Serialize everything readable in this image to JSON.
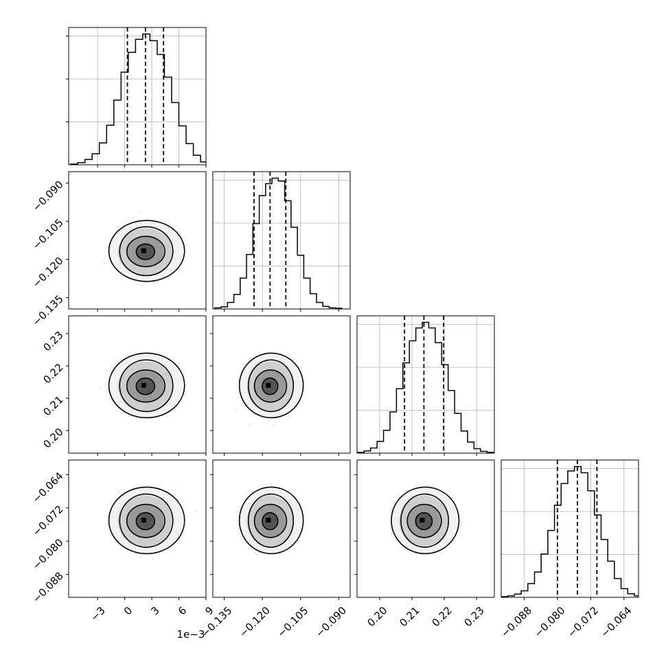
{
  "chart_data": {
    "type": "corner",
    "n_params": 4,
    "params": [
      {
        "id": "p1",
        "range": [
          -6.2,
          9.0
        ],
        "ticks": [
          -3,
          0,
          3,
          6,
          9
        ],
        "tick_labels": [
          "−3",
          "0",
          "3",
          "6",
          "9"
        ],
        "axis_offset_label": "1e−3",
        "quantiles": [
          0.3,
          2.3,
          4.3
        ],
        "hist_x": [
          -5.6,
          -4.8,
          -4.0,
          -3.2,
          -2.4,
          -1.6,
          -0.8,
          0.0,
          0.8,
          1.6,
          2.4,
          3.2,
          4.0,
          4.8,
          5.6,
          6.4,
          7.2,
          8.0,
          8.8
        ],
        "hist_y": [
          2,
          6,
          15,
          31,
          62,
          112,
          183,
          262,
          318,
          355,
          370,
          351,
          312,
          248,
          176,
          110,
          60,
          27,
          8
        ]
      },
      {
        "id": "p2",
        "range": [
          -0.1395,
          -0.0855
        ],
        "ticks": [
          -0.135,
          -0.12,
          -0.105,
          -0.09
        ],
        "tick_labels": [
          "−0.135",
          "−0.120",
          "−0.105",
          "−0.090"
        ],
        "quantiles": [
          -0.1233,
          -0.117,
          -0.1108
        ],
        "hist_x": [
          -0.1375,
          -0.135,
          -0.1325,
          -0.13,
          -0.1275,
          -0.125,
          -0.1225,
          -0.12,
          -0.1175,
          -0.115,
          -0.1125,
          -0.11,
          -0.1075,
          -0.105,
          -0.1025,
          -0.1,
          -0.0975,
          -0.095,
          -0.0925,
          -0.09
        ],
        "hist_y": [
          3,
          6,
          18,
          40,
          85,
          150,
          235,
          312,
          345,
          360,
          352,
          298,
          225,
          148,
          85,
          42,
          18,
          7,
          3,
          2
        ]
      },
      {
        "id": "p3",
        "range": [
          0.193,
          0.2355
        ],
        "ticks": [
          0.2,
          0.21,
          0.22,
          0.23
        ],
        "tick_labels": [
          "0.20",
          "0.21",
          "0.22",
          "0.23"
        ],
        "quantiles": [
          0.2077,
          0.2137,
          0.2198
        ],
        "hist_x": [
          0.1942,
          0.1962,
          0.1982,
          0.2002,
          0.2022,
          0.2042,
          0.2062,
          0.2082,
          0.2102,
          0.2122,
          0.2142,
          0.2162,
          0.2182,
          0.2202,
          0.2222,
          0.2242,
          0.2262,
          0.2282,
          0.2302,
          0.2322,
          0.2342
        ],
        "hist_y": [
          2,
          6,
          14,
          32,
          62,
          112,
          175,
          245,
          305,
          340,
          355,
          340,
          300,
          240,
          170,
          108,
          60,
          30,
          12,
          5,
          2
        ]
      },
      {
        "id": "p4",
        "range": [
          -0.0935,
          -0.0605
        ],
        "ticks": [
          -0.088,
          -0.08,
          -0.072,
          -0.064
        ],
        "tick_labels": [
          "−0.088",
          "−0.080",
          "−0.072",
          "−0.064"
        ],
        "quantiles": [
          -0.08,
          -0.0752,
          -0.0705
        ],
        "hist_x": [
          -0.0927,
          -0.0911,
          -0.0895,
          -0.0879,
          -0.0863,
          -0.0847,
          -0.0831,
          -0.0815,
          -0.0799,
          -0.0783,
          -0.0767,
          -0.0751,
          -0.0735,
          -0.0719,
          -0.0703,
          -0.0687,
          -0.0671,
          -0.0655,
          -0.0639,
          -0.0623,
          -0.0607
        ],
        "hist_y": [
          2,
          4,
          9,
          18,
          38,
          70,
          120,
          185,
          255,
          315,
          350,
          362,
          345,
          295,
          228,
          160,
          100,
          52,
          24,
          10,
          4
        ]
      }
    ],
    "pairs": [
      {
        "row": 1,
        "col": 0,
        "peak": [
          2.3,
          -0.117
        ],
        "spread": [
          2.4,
          0.0072
        ]
      },
      {
        "row": 2,
        "col": 0,
        "peak": [
          2.3,
          0.2137
        ],
        "spread": [
          2.4,
          0.006
        ]
      },
      {
        "row": 2,
        "col": 1,
        "peak": [
          -0.117,
          0.2137
        ],
        "spread": [
          0.0072,
          0.006
        ]
      },
      {
        "row": 3,
        "col": 0,
        "peak": [
          2.3,
          -0.0752
        ],
        "spread": [
          2.4,
          0.0048
        ]
      },
      {
        "row": 3,
        "col": 1,
        "peak": [
          -0.117,
          -0.0752
        ],
        "spread": [
          0.0072,
          0.0048
        ]
      },
      {
        "row": 3,
        "col": 2,
        "peak": [
          0.2137,
          -0.0752
        ],
        "spread": [
          0.006,
          0.0048
        ]
      }
    ],
    "contour_levels_sigma": [
      0.5,
      1.0,
      1.5,
      2.0
    ],
    "grid": true,
    "colors": {
      "lines": "#000000",
      "grid": "#b0b0b0",
      "points": "#9a9a9a"
    }
  }
}
